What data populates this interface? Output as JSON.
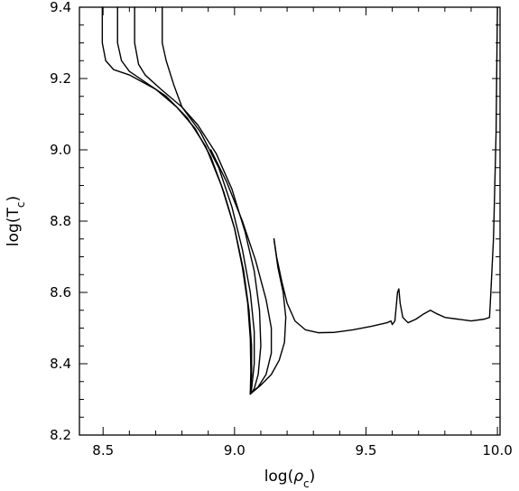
{
  "chart_data": {
    "type": "line",
    "title": "",
    "xlabel": "log(ρc)",
    "ylabel": "log(Tc)",
    "xlabel_parts": {
      "base": "log(",
      "greek": "ρ",
      "sub": "c",
      "close": ")"
    },
    "ylabel_parts": {
      "base": "log(T",
      "sub": "c",
      "close": ")"
    },
    "xlim": [
      8.41,
      10.01
    ],
    "ylim": [
      8.2,
      9.4
    ],
    "grid": false,
    "legend": "none",
    "xticks": {
      "major": [
        8.5,
        9.0,
        9.5,
        10.0
      ],
      "major_labels": [
        "8.5",
        "9.0",
        "9.5",
        "10.0"
      ],
      "minor_step": 0.1
    },
    "yticks": {
      "major": [
        8.2,
        8.4,
        8.6,
        8.8,
        9.0,
        9.2,
        9.4
      ],
      "major_labels": [
        "8.2",
        "8.4",
        "8.6",
        "8.8",
        "9.0",
        "9.2",
        "9.4"
      ],
      "minor_step": 0.05
    },
    "line_color": "#000000",
    "series": [
      {
        "values": [
          [
            8.497,
            9.4
          ],
          [
            8.497,
            9.3
          ],
          [
            8.51,
            9.25
          ],
          [
            8.54,
            9.225
          ],
          [
            8.6,
            9.21
          ],
          [
            8.7,
            9.17
          ],
          [
            8.78,
            9.12
          ],
          [
            8.85,
            9.06
          ],
          [
            8.91,
            8.98
          ],
          [
            8.96,
            8.88
          ],
          [
            9.0,
            8.78
          ],
          [
            9.03,
            8.67
          ],
          [
            9.05,
            8.57
          ],
          [
            9.06,
            8.47
          ],
          [
            9.062,
            8.38
          ],
          [
            9.06,
            8.315
          ]
        ]
      },
      {
        "values": [
          [
            8.555,
            9.4
          ],
          [
            8.555,
            9.3
          ],
          [
            8.57,
            9.25
          ],
          [
            8.6,
            9.22
          ],
          [
            8.66,
            9.19
          ],
          [
            8.74,
            9.15
          ],
          [
            8.82,
            9.09
          ],
          [
            8.89,
            9.01
          ],
          [
            8.95,
            8.9
          ],
          [
            9.0,
            8.78
          ],
          [
            9.035,
            8.66
          ],
          [
            9.055,
            8.55
          ],
          [
            9.065,
            8.45
          ],
          [
            9.065,
            8.37
          ],
          [
            9.06,
            8.315
          ]
        ]
      },
      {
        "values": [
          [
            8.62,
            9.4
          ],
          [
            8.62,
            9.3
          ],
          [
            8.635,
            9.24
          ],
          [
            8.66,
            9.21
          ],
          [
            8.72,
            9.17
          ],
          [
            8.8,
            9.12
          ],
          [
            8.87,
            9.05
          ],
          [
            8.94,
            8.95
          ],
          [
            8.99,
            8.84
          ],
          [
            9.03,
            8.72
          ],
          [
            9.06,
            8.6
          ],
          [
            9.075,
            8.49
          ],
          [
            9.075,
            8.4
          ],
          [
            9.065,
            8.33
          ],
          [
            9.06,
            8.315
          ]
        ]
      },
      {
        "values": [
          [
            8.725,
            9.4
          ],
          [
            8.725,
            9.3
          ],
          [
            8.74,
            9.25
          ],
          [
            8.77,
            9.18
          ],
          [
            8.8,
            9.12
          ],
          [
            8.86,
            9.07
          ],
          [
            8.93,
            8.99
          ],
          [
            8.99,
            8.89
          ],
          [
            9.04,
            8.77
          ],
          [
            9.075,
            8.66
          ],
          [
            9.095,
            8.55
          ],
          [
            9.1,
            8.45
          ],
          [
            9.09,
            8.37
          ],
          [
            9.075,
            8.33
          ],
          [
            9.06,
            8.315
          ]
        ]
      },
      {
        "values": [
          [
            8.91,
            9.0
          ],
          [
            8.97,
            8.91
          ],
          [
            9.03,
            8.8
          ],
          [
            9.08,
            8.69
          ],
          [
            9.12,
            8.58
          ],
          [
            9.14,
            8.5
          ],
          [
            9.14,
            8.43
          ],
          [
            9.12,
            8.37
          ],
          [
            9.09,
            8.335
          ],
          [
            9.06,
            8.315
          ],
          [
            9.1,
            8.34
          ],
          [
            9.14,
            8.37
          ],
          [
            9.17,
            8.41
          ],
          [
            9.19,
            8.46
          ],
          [
            9.195,
            8.53
          ],
          [
            9.185,
            8.6
          ],
          [
            9.165,
            8.67
          ],
          [
            9.15,
            8.75
          ]
        ]
      },
      {
        "values": [
          [
            9.15,
            8.75
          ],
          [
            9.16,
            8.7
          ],
          [
            9.18,
            8.63
          ],
          [
            9.2,
            8.57
          ],
          [
            9.23,
            8.52
          ],
          [
            9.27,
            8.495
          ],
          [
            9.32,
            8.487
          ],
          [
            9.38,
            8.488
          ],
          [
            9.45,
            8.495
          ],
          [
            9.52,
            8.505
          ],
          [
            9.58,
            8.515
          ],
          [
            9.595,
            8.52
          ],
          [
            9.6,
            8.51
          ],
          [
            9.61,
            8.52
          ],
          [
            9.62,
            8.6
          ],
          [
            9.625,
            8.61
          ],
          [
            9.63,
            8.57
          ],
          [
            9.64,
            8.53
          ],
          [
            9.66,
            8.515
          ],
          [
            9.69,
            8.525
          ],
          [
            9.72,
            8.54
          ],
          [
            9.745,
            8.55
          ],
          [
            9.77,
            8.54
          ],
          [
            9.8,
            8.53
          ],
          [
            9.85,
            8.525
          ],
          [
            9.9,
            8.52
          ],
          [
            9.95,
            8.525
          ],
          [
            9.97,
            8.53
          ],
          [
            9.975,
            8.6
          ],
          [
            9.985,
            8.75
          ],
          [
            9.99,
            8.9
          ],
          [
            9.995,
            9.05
          ],
          [
            10.0,
            9.4
          ]
        ]
      }
    ]
  }
}
